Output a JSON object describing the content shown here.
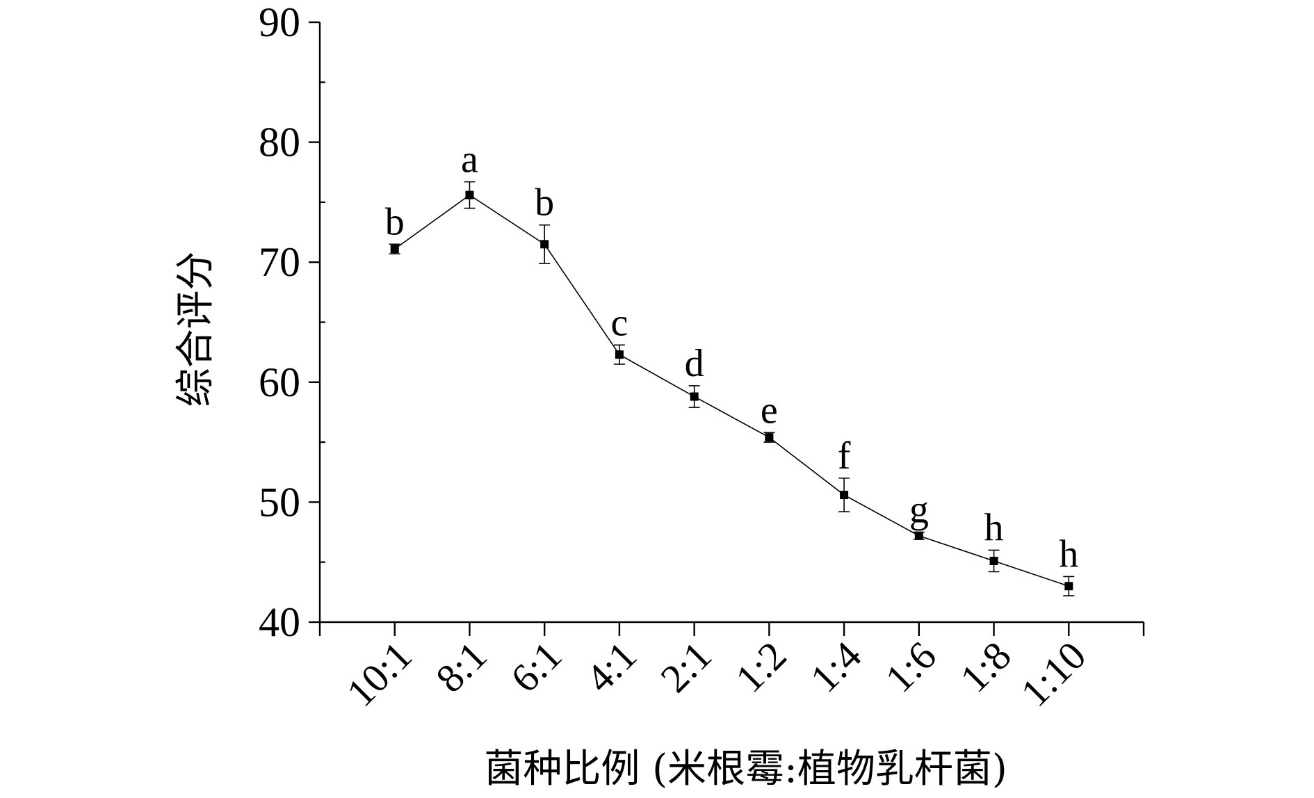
{
  "chart_data": {
    "type": "line",
    "title": "",
    "xlabel": "菌种比例 (米根霉:植物乳杆菌)",
    "ylabel": "综合评分",
    "categories": [
      "10:1",
      "8:1",
      "6:1",
      "4:1",
      "2:1",
      "1:2",
      "1:4",
      "1:6",
      "1:8",
      "1:10"
    ],
    "series": [
      {
        "values": [
          71.1,
          75.6,
          71.5,
          62.3,
          58.8,
          55.4,
          50.6,
          47.2,
          45.1,
          43.0
        ],
        "errors": [
          0.4,
          1.1,
          1.6,
          0.8,
          0.9,
          0.4,
          1.4,
          0.3,
          0.9,
          0.8
        ],
        "labels": [
          "b",
          "a",
          "b",
          "c",
          "d",
          "e",
          "f",
          "g",
          "h",
          "h"
        ]
      }
    ],
    "ylim": [
      40,
      90
    ],
    "yticks": [
      40,
      50,
      60,
      70,
      80,
      90
    ],
    "y_minor_step": 5,
    "grid": false,
    "marker": "square",
    "color": "#000000"
  }
}
